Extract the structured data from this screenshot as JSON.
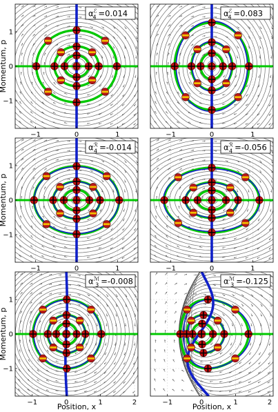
{
  "figure": {
    "ylabel": "Momentum, p",
    "xlabel": "Position, x"
  },
  "colors": {
    "stream": "#3a3a3a",
    "arrow": "#555555",
    "green": "#00c800",
    "blue": "#1020c8",
    "marker_fill": "#b81818",
    "marker_band": "#f2c000",
    "dark_marker": "#c01010",
    "cross": "#000000"
  },
  "chart_data": [
    {
      "type": "scatter",
      "panel": "a",
      "label_prefix": "α",
      "sub": "4",
      "sup": "ℰ",
      "value": "=0.014",
      "xlim": [
        -1.5,
        1.5
      ],
      "ylim": [
        -1.8,
        1.8
      ],
      "xticks": [
        "-1",
        "0",
        "1"
      ],
      "yticks": [
        "1",
        "0",
        "-1"
      ],
      "grid": true,
      "show_x_ticks": true,
      "show_y_ticks": true,
      "show_xlabel": false,
      "show_ylabel": true,
      "deform": {
        "kind": "E",
        "k": 0.014
      },
      "rings": [
        0.3,
        0.55,
        1.0
      ],
      "legend_position": "top-right"
    },
    {
      "type": "scatter",
      "panel": "b",
      "label_prefix": "α",
      "sub": "4",
      "sup": "ℰ",
      "value": "=0.083",
      "xlim": [
        -1.5,
        1.5
      ],
      "ylim": [
        -1.8,
        1.8
      ],
      "xticks": [
        "-1",
        "0",
        "1"
      ],
      "yticks": [],
      "grid": true,
      "show_x_ticks": true,
      "show_y_ticks": false,
      "show_xlabel": false,
      "show_ylabel": false,
      "deform": {
        "kind": "E",
        "k": 0.083
      },
      "rings": [
        0.3,
        0.55,
        1.0
      ],
      "legend_position": "top-right"
    },
    {
      "type": "scatter",
      "panel": "c",
      "label_prefix": "α",
      "sub": "4",
      "sup": "ℛ",
      "value": "=-0.014",
      "xlim": [
        -1.5,
        1.5
      ],
      "ylim": [
        -1.8,
        1.8
      ],
      "xticks": [
        "-1",
        "0",
        "1"
      ],
      "yticks": [
        "1",
        "0",
        "-1"
      ],
      "grid": true,
      "show_x_ticks": true,
      "show_y_ticks": true,
      "show_xlabel": false,
      "show_ylabel": true,
      "deform": {
        "kind": "R",
        "k": -0.014
      },
      "rings": [
        0.3,
        0.55,
        1.0
      ],
      "legend_position": "top-right"
    },
    {
      "type": "scatter",
      "panel": "d",
      "label_prefix": "α",
      "sub": "4",
      "sup": "ℛ",
      "value": "=-0.056",
      "xlim": [
        -1.5,
        1.5
      ],
      "ylim": [
        -1.8,
        1.8
      ],
      "xticks": [
        "-1",
        "0",
        "1"
      ],
      "yticks": [],
      "grid": true,
      "show_x_ticks": true,
      "show_y_ticks": false,
      "show_xlabel": false,
      "show_ylabel": false,
      "deform": {
        "kind": "R",
        "k": -0.056
      },
      "rings": [
        0.3,
        0.55,
        1.0
      ],
      "legend_position": "top-right"
    },
    {
      "type": "scatter",
      "panel": "e",
      "label_prefix": "α",
      "sub": "3",
      "sup": "ℳ",
      "value": "=-0.008",
      "xlim": [
        -1.5,
        2.1
      ],
      "ylim": [
        -1.8,
        1.8
      ],
      "xticks": [
        "-1",
        "0",
        "1",
        "2"
      ],
      "yticks": [
        "1",
        "0",
        "-1"
      ],
      "grid": true,
      "show_x_ticks": true,
      "show_y_ticks": true,
      "show_xlabel": true,
      "show_ylabel": true,
      "deform": {
        "kind": "M",
        "k": -0.008
      },
      "rings": [
        0.3,
        0.55,
        1.0
      ],
      "legend_position": "top-right"
    },
    {
      "type": "scatter",
      "panel": "f",
      "label_prefix": "α",
      "sub": "3",
      "sup": "ℳ",
      "value": "=-0.125",
      "xlim": [
        -1.5,
        2.1
      ],
      "ylim": [
        -1.8,
        1.8
      ],
      "xticks": [
        "-1",
        "0",
        "1",
        "2"
      ],
      "yticks": [],
      "grid": true,
      "show_x_ticks": true,
      "show_y_ticks": false,
      "show_xlabel": true,
      "show_ylabel": false,
      "deform": {
        "kind": "M",
        "k": -0.125
      },
      "rings": [
        0.3,
        0.55,
        1.0
      ],
      "legend_position": "top-right"
    }
  ]
}
